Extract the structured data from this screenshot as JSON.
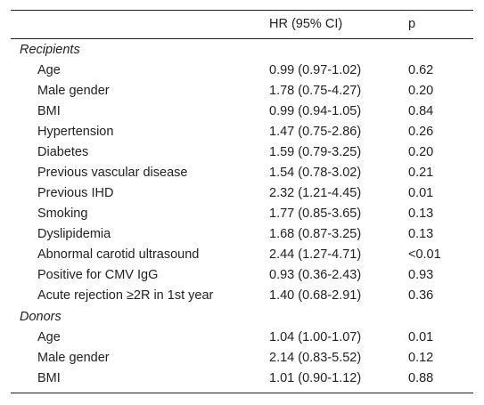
{
  "table": {
    "headers": {
      "variable": "",
      "hr": "HR (95% CI)",
      "p": "p"
    },
    "groups": [
      {
        "label": "Recipients",
        "rows": [
          {
            "variable": "Age",
            "hr": "0.99 (0.97-1.02)",
            "p": "0.62"
          },
          {
            "variable": "Male gender",
            "hr": "1.78 (0.75-4.27)",
            "p": "0.20"
          },
          {
            "variable": "BMI",
            "hr": "0.99 (0.94-1.05)",
            "p": "0.84"
          },
          {
            "variable": "Hypertension",
            "hr": "1.47 (0.75-2.86)",
            "p": "0.26"
          },
          {
            "variable": "Diabetes",
            "hr": "1.59 (0.79-3.25)",
            "p": "0.20"
          },
          {
            "variable": "Previous vascular disease",
            "hr": "1.54 (0.78-3.02)",
            "p": "0.21"
          },
          {
            "variable": "Previous IHD",
            "hr": "2.32 (1.21-4.45)",
            "p": "0.01"
          },
          {
            "variable": "Smoking",
            "hr": "1.77 (0.85-3.65)",
            "p": "0.13"
          },
          {
            "variable": "Dyslipidemia",
            "hr": "1.68 (0.87-3.25)",
            "p": "0.13"
          },
          {
            "variable": "Abnormal carotid ultrasound",
            "hr": "2.44 (1.27-4.71)",
            "p": "<0.01"
          },
          {
            "variable": "Positive for CMV IgG",
            "hr": "0.93 (0.36-2.43)",
            "p": "0.93"
          },
          {
            "variable": "Acute rejection ≥2R in 1st year",
            "hr": "1.40 (0.68-2.91)",
            "p": "0.36"
          }
        ]
      },
      {
        "label": "Donors",
        "rows": [
          {
            "variable": "Age",
            "hr": "1.04 (1.00-1.07)",
            "p": "0.01"
          },
          {
            "variable": "Male gender",
            "hr": "2.14 (0.83-5.52)",
            "p": "0.12"
          },
          {
            "variable": "BMI",
            "hr": "1.01 (0.90-1.12)",
            "p": "0.88"
          }
        ]
      }
    ]
  }
}
